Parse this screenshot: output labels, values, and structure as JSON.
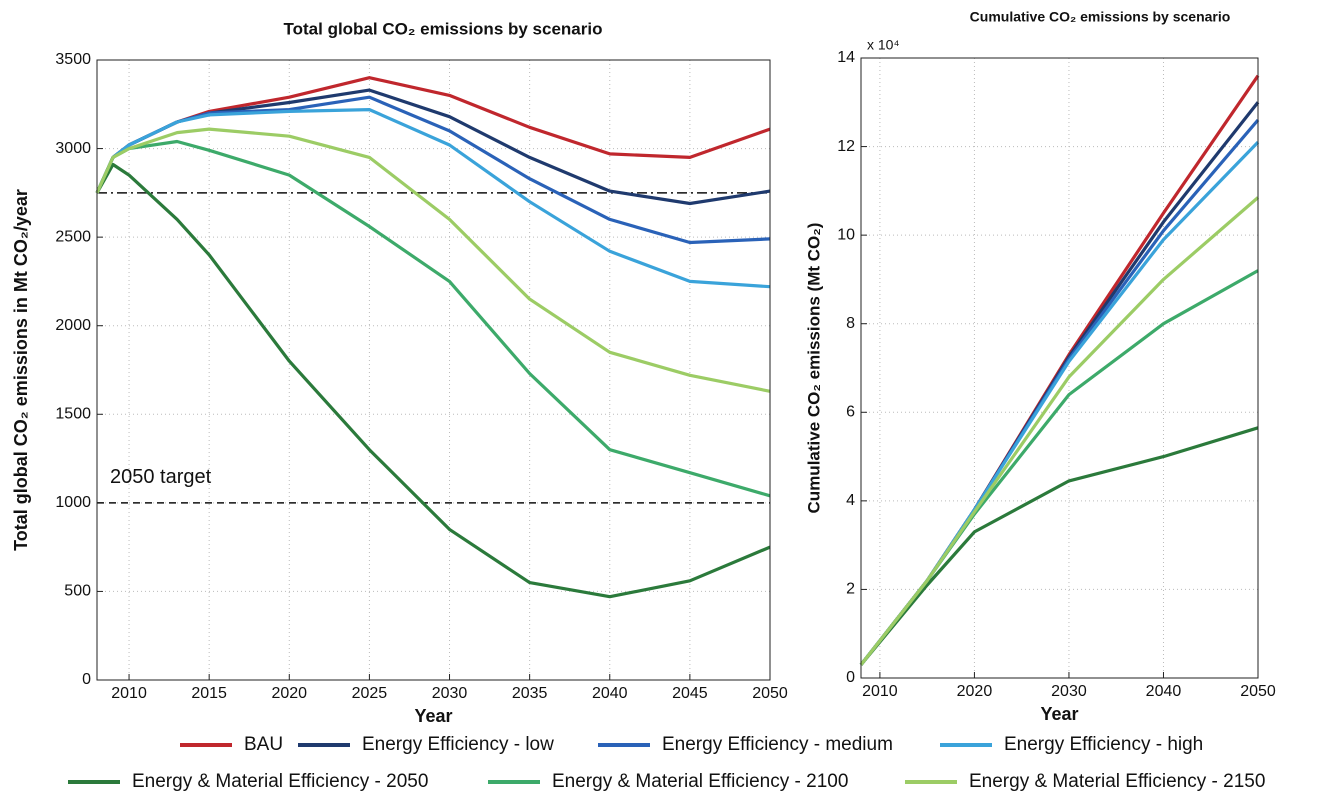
{
  "chart_data": [
    {
      "type": "line",
      "title": "Total global CO₂ emissions by scenario",
      "x_label": "Year",
      "y_label": "Total global CO₂ emissions in Mt CO₂/year",
      "x": [
        2008,
        2009,
        2010,
        2013,
        2015,
        2020,
        2025,
        2030,
        2035,
        2040,
        2045,
        2050
      ],
      "xlim": [
        2008,
        2050
      ],
      "xticks": [
        2010,
        2015,
        2020,
        2025,
        2030,
        2035,
        2040,
        2045,
        2050
      ],
      "ylim": [
        0,
        3500
      ],
      "yticks": [
        0,
        500,
        1000,
        1500,
        2000,
        2500,
        3000,
        3500
      ],
      "grid": true,
      "reference_lines": [
        {
          "value": 2750,
          "style": "dashdot"
        },
        {
          "value": 1000,
          "style": "dashed",
          "label": "2050 target"
        }
      ],
      "series": [
        {
          "name": "BAU",
          "color": "#c0272d",
          "values": [
            2750,
            2950,
            3020,
            3150,
            3210,
            3290,
            3400,
            3300,
            3120,
            2970,
            2950,
            3110
          ]
        },
        {
          "name": "Energy Efficiency - low",
          "color": "#1f3a6e",
          "values": [
            2750,
            2950,
            3020,
            3150,
            3200,
            3260,
            3330,
            3180,
            2950,
            2760,
            2690,
            2760
          ]
        },
        {
          "name": "Energy Efficiency - medium",
          "color": "#2a62b8",
          "values": [
            2750,
            2950,
            3020,
            3150,
            3200,
            3220,
            3290,
            3100,
            2830,
            2600,
            2470,
            2490
          ]
        },
        {
          "name": "Energy Efficiency - high",
          "color": "#3aa3da",
          "values": [
            2750,
            2950,
            3020,
            3150,
            3190,
            3210,
            3220,
            3020,
            2700,
            2420,
            2250,
            2220
          ]
        },
        {
          "name": "Energy & Material Efficiency - 2050",
          "color": "#2b7a3b",
          "values": [
            2750,
            2910,
            2850,
            2600,
            2400,
            1800,
            1300,
            850,
            550,
            470,
            560,
            750
          ]
        },
        {
          "name": "Energy & Material Efficiency - 2100",
          "color": "#3daa6a",
          "values": [
            2750,
            2950,
            3000,
            3040,
            2990,
            2850,
            2560,
            2250,
            1730,
            1300,
            1170,
            1040
          ]
        },
        {
          "name": "Energy & Material Efficiency - 2150",
          "color": "#9ccc65",
          "values": [
            2750,
            2950,
            3000,
            3090,
            3110,
            3070,
            2950,
            2600,
            2150,
            1850,
            1720,
            1630
          ]
        }
      ]
    },
    {
      "type": "line",
      "title": "Cumulative CO₂ emissions by scenario",
      "x_label": "Year",
      "y_label": "Cumulative CO₂ emissions (Mt CO₂)",
      "y_multiplier": "x 10⁴",
      "x": [
        2008,
        2015,
        2020,
        2030,
        2040,
        2050
      ],
      "xlim": [
        2008,
        2050
      ],
      "xticks": [
        2010,
        2020,
        2030,
        2040,
        2050
      ],
      "ylim": [
        0,
        140000
      ],
      "yticks": [
        0,
        {
          "value": 20000,
          "label": "2"
        },
        {
          "value": 40000,
          "label": "4"
        },
        {
          "value": 60000,
          "label": "6"
        },
        {
          "value": 80000,
          "label": "8"
        },
        {
          "value": 100000,
          "label": "10"
        },
        {
          "value": 120000,
          "label": "12"
        },
        {
          "value": 140000,
          "label": "14"
        }
      ],
      "grid": true,
      "series": [
        {
          "color": "#c0272d",
          "values": [
            3000,
            22000,
            38000,
            73000,
            105000,
            136000
          ]
        },
        {
          "color": "#1f3a6e",
          "values": [
            3000,
            22000,
            38000,
            72500,
            103000,
            130000
          ]
        },
        {
          "color": "#2a62b8",
          "values": [
            3000,
            22000,
            38000,
            72000,
            101000,
            126000
          ]
        },
        {
          "color": "#3aa3da",
          "values": [
            3000,
            22000,
            38000,
            71500,
            99000,
            121000
          ]
        },
        {
          "color": "#2b7a3b",
          "values": [
            3000,
            21000,
            33000,
            44500,
            50000,
            56500
          ]
        },
        {
          "color": "#3daa6a",
          "values": [
            3000,
            22000,
            37000,
            64000,
            80000,
            92000
          ]
        },
        {
          "color": "#9ccc65",
          "values": [
            3000,
            22000,
            37500,
            68000,
            90000,
            108500
          ]
        }
      ]
    }
  ]
}
